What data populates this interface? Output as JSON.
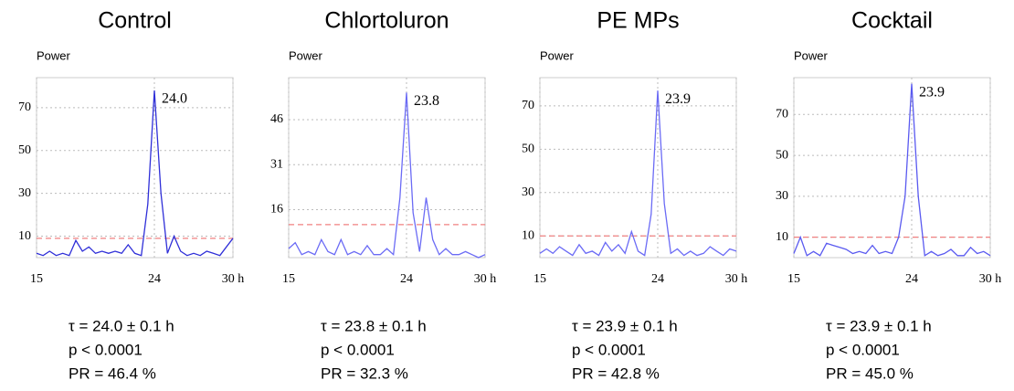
{
  "chart_data": [
    {
      "type": "line",
      "title": "Control",
      "y_label": "Power",
      "peak_label": "24.0",
      "stats": [
        "τ = 24.0 ± 0.1 h",
        "p < 0.0001",
        "PR = 46.4 %"
      ],
      "x": [
        15,
        15.5,
        16,
        16.5,
        17,
        17.5,
        18,
        18.5,
        19,
        19.5,
        20,
        20.5,
        21,
        21.5,
        22,
        22.5,
        23,
        23.5,
        24,
        24.5,
        25,
        25.5,
        26,
        26.5,
        27,
        27.5,
        28,
        28.5,
        29,
        29.5,
        30
      ],
      "values": [
        2,
        1,
        3,
        1,
        2,
        1,
        8,
        3,
        5,
        2,
        3,
        2,
        3,
        2,
        6,
        2,
        1,
        25,
        78,
        30,
        2,
        10,
        3,
        1,
        2,
        1,
        3,
        2,
        1,
        5,
        9
      ],
      "color": "#2f2fd8",
      "threshold": 9,
      "threshold_color": "#f08080",
      "xlim": [
        15,
        30
      ],
      "xticks": [
        15,
        24,
        {
          "value": 30,
          "label": "30 h"
        }
      ],
      "ylim": [
        0,
        84
      ],
      "yticks": [
        10,
        30,
        50,
        70
      ],
      "grid": true
    },
    {
      "type": "line",
      "title": "Chlortoluron",
      "y_label": "Power",
      "peak_label": "23.8",
      "stats": [
        "τ = 23.8 ± 0.1 h",
        "p < 0.0001",
        "PR = 32.3 %"
      ],
      "x": [
        15,
        15.5,
        16,
        16.5,
        17,
        17.5,
        18,
        18.5,
        19,
        19.5,
        20,
        20.5,
        21,
        21.5,
        22,
        22.5,
        23,
        23.5,
        24,
        24.5,
        25,
        25.5,
        26,
        26.5,
        27,
        27.5,
        28,
        28.5,
        29,
        29.5,
        30
      ],
      "values": [
        3,
        5,
        1,
        2,
        1,
        6,
        2,
        1,
        6,
        1,
        2,
        1,
        4,
        1,
        1,
        3,
        1,
        20,
        55,
        15,
        2,
        20,
        6,
        1,
        3,
        1,
        1,
        2,
        1,
        0,
        1
      ],
      "color": "#6b6bf5",
      "threshold": 11,
      "threshold_color": "#f08080",
      "xlim": [
        15,
        30
      ],
      "xticks": [
        15,
        24,
        {
          "value": 30,
          "label": "30 h"
        }
      ],
      "ylim": [
        0,
        60
      ],
      "yticks": [
        16,
        31,
        46
      ],
      "grid": true
    },
    {
      "type": "line",
      "title": "PE MPs",
      "y_label": "Power",
      "peak_label": "23.9",
      "stats": [
        "τ = 23.9 ± 0.1 h",
        "p < 0.0001",
        "PR = 42.8 %"
      ],
      "x": [
        15,
        15.5,
        16,
        16.5,
        17,
        17.5,
        18,
        18.5,
        19,
        19.5,
        20,
        20.5,
        21,
        21.5,
        22,
        22.5,
        23,
        23.5,
        24,
        24.5,
        25,
        25.5,
        26,
        26.5,
        27,
        27.5,
        28,
        28.5,
        29,
        29.5,
        30
      ],
      "values": [
        2,
        4,
        2,
        5,
        3,
        1,
        6,
        2,
        3,
        1,
        7,
        3,
        6,
        2,
        12,
        3,
        1,
        20,
        77,
        25,
        2,
        4,
        1,
        3,
        1,
        2,
        5,
        3,
        1,
        4,
        3
      ],
      "color": "#6b6bf5",
      "threshold": 10,
      "threshold_color": "#f08080",
      "xlim": [
        15,
        30
      ],
      "xticks": [
        15,
        24,
        {
          "value": 30,
          "label": "30 h"
        }
      ],
      "ylim": [
        0,
        83
      ],
      "yticks": [
        10,
        30,
        50,
        70
      ],
      "grid": true
    },
    {
      "type": "line",
      "title": "Cocktail",
      "y_label": "Power",
      "peak_label": "23.9",
      "stats": [
        "τ = 23.9 ± 0.1 h",
        "p < 0.0001",
        "PR = 45.0 %"
      ],
      "x": [
        15,
        15.5,
        16,
        16.5,
        17,
        17.5,
        18,
        18.5,
        19,
        19.5,
        20,
        20.5,
        21,
        21.5,
        22,
        22.5,
        23,
        23.5,
        24,
        24.5,
        25,
        25.5,
        26,
        26.5,
        27,
        27.5,
        28,
        28.5,
        29,
        29.5,
        30
      ],
      "values": [
        2,
        10,
        1,
        3,
        1,
        7,
        6,
        5,
        4,
        2,
        3,
        2,
        6,
        2,
        3,
        2,
        10,
        30,
        85,
        30,
        1,
        3,
        1,
        2,
        4,
        1,
        1,
        5,
        2,
        3,
        1
      ],
      "color": "#5a5af0",
      "threshold": 10,
      "threshold_color": "#f08080",
      "xlim": [
        15,
        30
      ],
      "xticks": [
        15,
        24,
        {
          "value": 30,
          "label": "30 h"
        }
      ],
      "ylim": [
        0,
        88
      ],
      "yticks": [
        10,
        30,
        50,
        70
      ],
      "grid": true
    }
  ]
}
